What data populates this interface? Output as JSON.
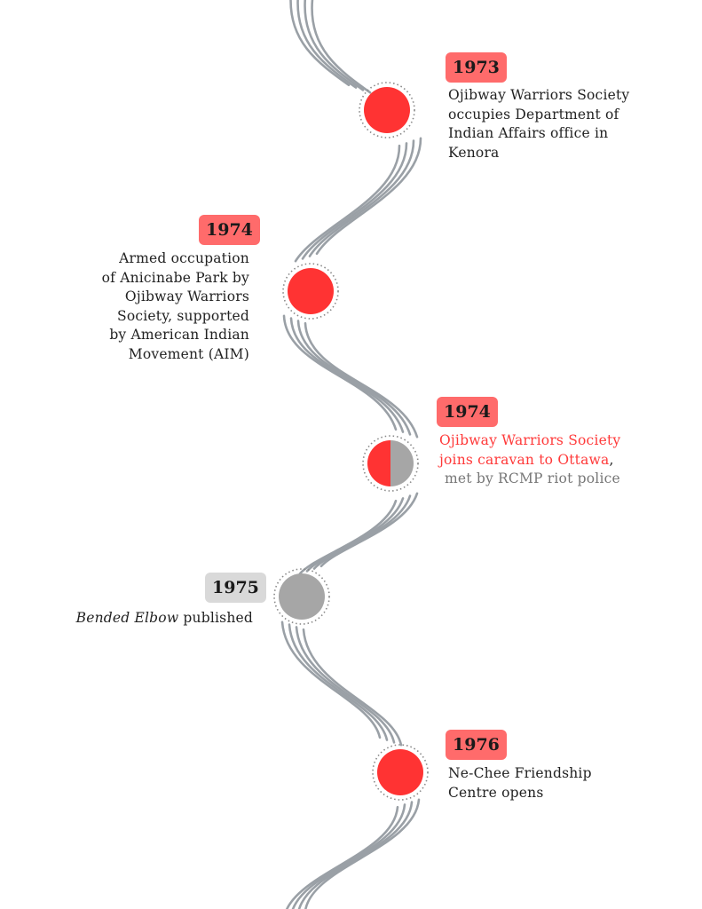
{
  "colors": {
    "accent": "#ff3333",
    "badge": "#ff6b6b",
    "badge_grey": "#d9d9d9",
    "node_grey": "#a6a6a6",
    "line": "#9aa0a6"
  },
  "events": [
    {
      "year": "1973",
      "text": [
        "Ojibway Warriors Society",
        "occupies Department of",
        "Indian Affairs office in",
        "Kenora"
      ],
      "node": "red"
    },
    {
      "year": "1974",
      "text": [
        "Armed occupation",
        "of Anicinabe Park by",
        "Ojibway Warriors",
        "Society, supported",
        "by American Indian",
        "Movement (AIM)"
      ],
      "node": "red"
    },
    {
      "year": "1974",
      "text_red": [
        "Ojibway Warriors Society",
        "joins caravan to Ottawa"
      ],
      "text_comma": ",",
      "text_grey": "met by RCMP riot police",
      "node": "half"
    },
    {
      "year": "1975",
      "text_italic": "Bended Elbow",
      "text_rest": " published",
      "node": "grey"
    },
    {
      "year": "1976",
      "text": [
        "Ne-Chee Friendship",
        "Centre opens"
      ],
      "node": "red"
    }
  ]
}
